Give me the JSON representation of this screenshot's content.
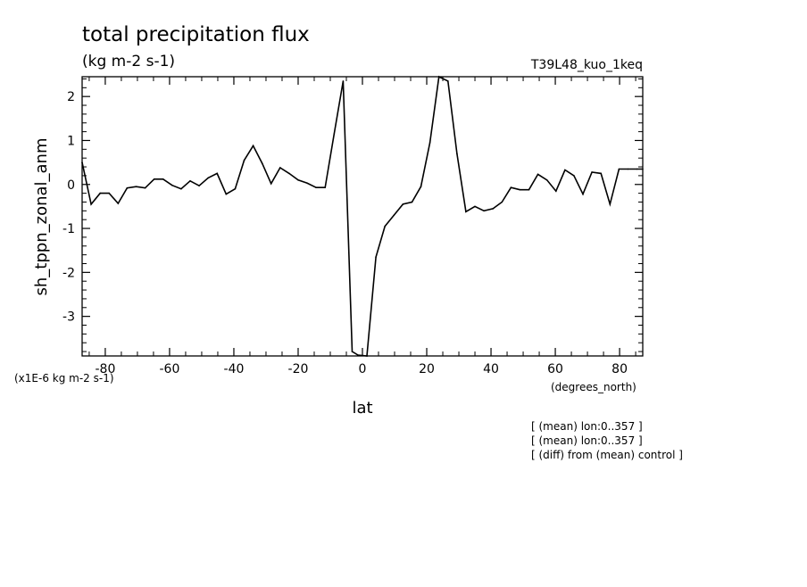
{
  "chart_data": {
    "type": "line",
    "title": "total precipitation flux",
    "units": "(kg m-2 s-1)",
    "run_id": "T39L48_kuo_1keq",
    "xlabel": "lat",
    "x_units": "(degrees_north)",
    "ylabel": "sh_tppn_zonal_anm",
    "y_scale_note": "(x1E-6 kg m-2 s-1)",
    "xlim": [
      -87.2,
      87.2
    ],
    "ylim": [
      -3.9,
      2.45
    ],
    "x_ticks": [
      -80,
      -60,
      -40,
      -20,
      0,
      20,
      40,
      60,
      80
    ],
    "x_tick_labels": [
      "-80",
      "-60",
      "-40",
      "-20",
      "0",
      "20",
      "40",
      "60",
      "80"
    ],
    "y_ticks": [
      -3,
      -2,
      -1,
      0,
      1,
      2
    ],
    "y_tick_labels": [
      "-3",
      "-2",
      "-1",
      "0",
      "1",
      "2"
    ],
    "grid": false,
    "series": [
      {
        "x": [
          -87.2,
          -84.4,
          -81.6,
          -78.8,
          -76.0,
          -73.2,
          -70.4,
          -67.6,
          -64.8,
          -62.0,
          -59.2,
          -56.4,
          -53.6,
          -50.8,
          -48.0,
          -45.2,
          -42.4,
          -39.6,
          -36.8,
          -34.0,
          -31.2,
          -28.4,
          -25.6,
          -22.8,
          -20.0,
          -17.2,
          -14.4,
          -11.6,
          -8.8,
          -6.0,
          -3.2,
          -1.4,
          1.4,
          4.2,
          7.0,
          9.8,
          12.6,
          15.4,
          18.2,
          21.0,
          23.8,
          26.6,
          29.4,
          32.2,
          35.0,
          37.8,
          40.6,
          43.4,
          46.2,
          49.0,
          51.8,
          54.6,
          57.4,
          60.2,
          63.0,
          65.8,
          68.6,
          71.4,
          74.2,
          77.0,
          79.8,
          82.6,
          85.4,
          87.2
        ],
        "y": [
          0.5,
          -0.45,
          -0.2,
          -0.2,
          -0.43,
          -0.08,
          -0.05,
          -0.08,
          0.12,
          0.12,
          -0.02,
          -0.1,
          0.08,
          -0.03,
          0.15,
          0.25,
          -0.22,
          -0.1,
          0.55,
          0.88,
          0.48,
          0.02,
          0.38,
          0.25,
          0.1,
          0.03,
          -0.07,
          -0.07,
          1.15,
          2.35,
          -3.8,
          -3.88,
          -3.9,
          -1.65,
          -0.95,
          -0.7,
          -0.45,
          -0.4,
          -0.05,
          0.95,
          2.45,
          2.35,
          0.7,
          -0.62,
          -0.5,
          -0.6,
          -0.55,
          -0.4,
          -0.07,
          -0.12,
          -0.12,
          0.23,
          0.1,
          -0.15,
          0.33,
          0.2,
          -0.22,
          0.28,
          0.25,
          -0.45,
          0.35,
          0.35,
          0.35,
          0.35
        ]
      }
    ]
  },
  "notes": [
    "[ (mean) lon:0..357 ]",
    "[ (mean) lon:0..357 ]",
    "[ (diff) from (mean) control ]"
  ]
}
